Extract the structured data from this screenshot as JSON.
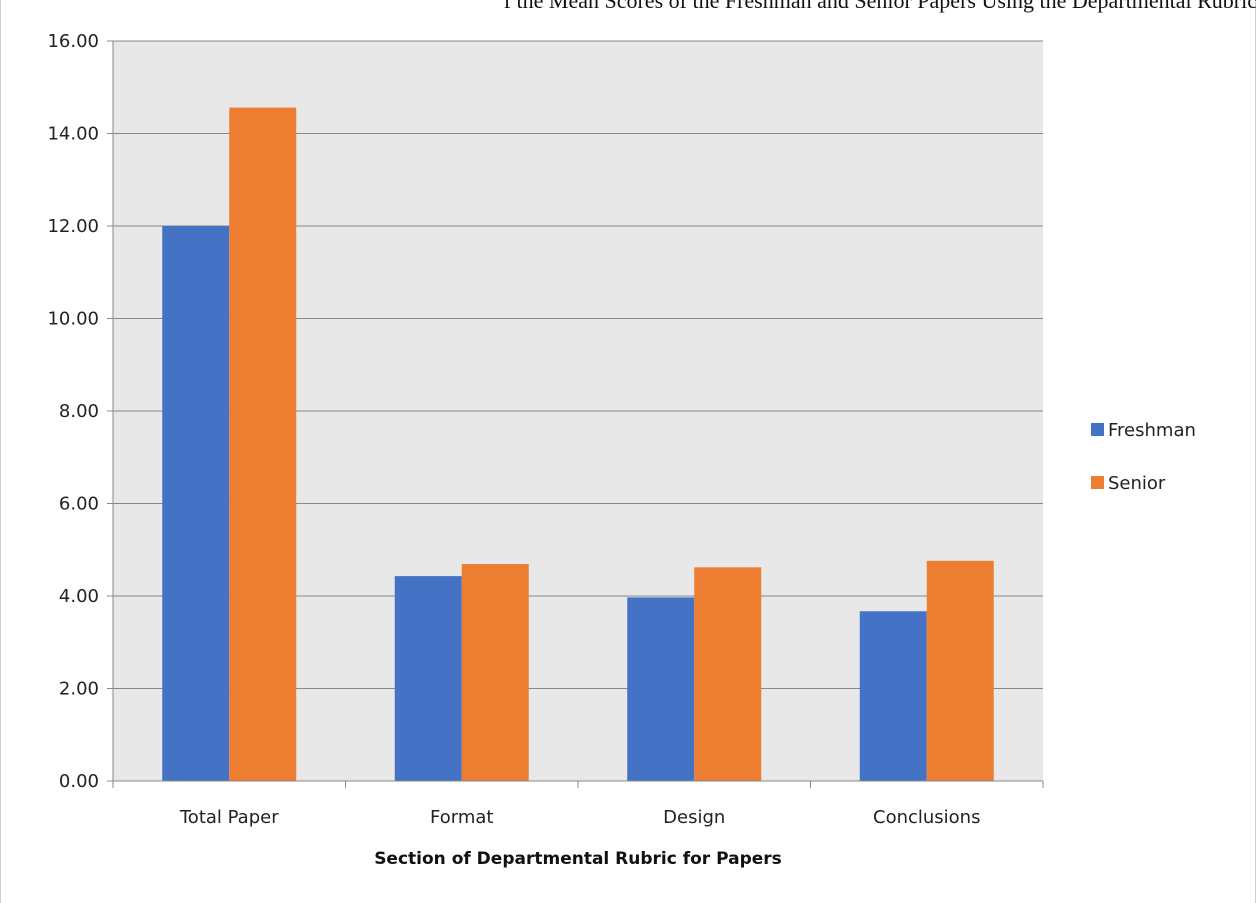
{
  "cut_off_title": "f the Mean Scores of the Freshman and Senior Papers Using the Departmental Rubric",
  "chart_data": {
    "type": "bar",
    "title": "",
    "xlabel": "Section of Departmental Rubric for Papers",
    "ylabel": "",
    "ylim": [
      0,
      16
    ],
    "ytick_step": 2,
    "ytick_labels": [
      "0.00",
      "2.00",
      "4.00",
      "6.00",
      "8.00",
      "10.00",
      "12.00",
      "14.00",
      "16.00"
    ],
    "grid": true,
    "legend_position": "right",
    "categories": [
      "Total Paper",
      "Format",
      "Design",
      "Conclusions"
    ],
    "series": [
      {
        "name": "Freshman",
        "color": "#4472c4",
        "values": [
          12.0,
          4.43,
          3.97,
          3.67
        ]
      },
      {
        "name": "Senior",
        "color": "#ed7d31",
        "values": [
          14.56,
          4.69,
          4.62,
          4.76
        ]
      }
    ],
    "plot_background": "#e8e8e8",
    "gridline_color": "#888888"
  }
}
